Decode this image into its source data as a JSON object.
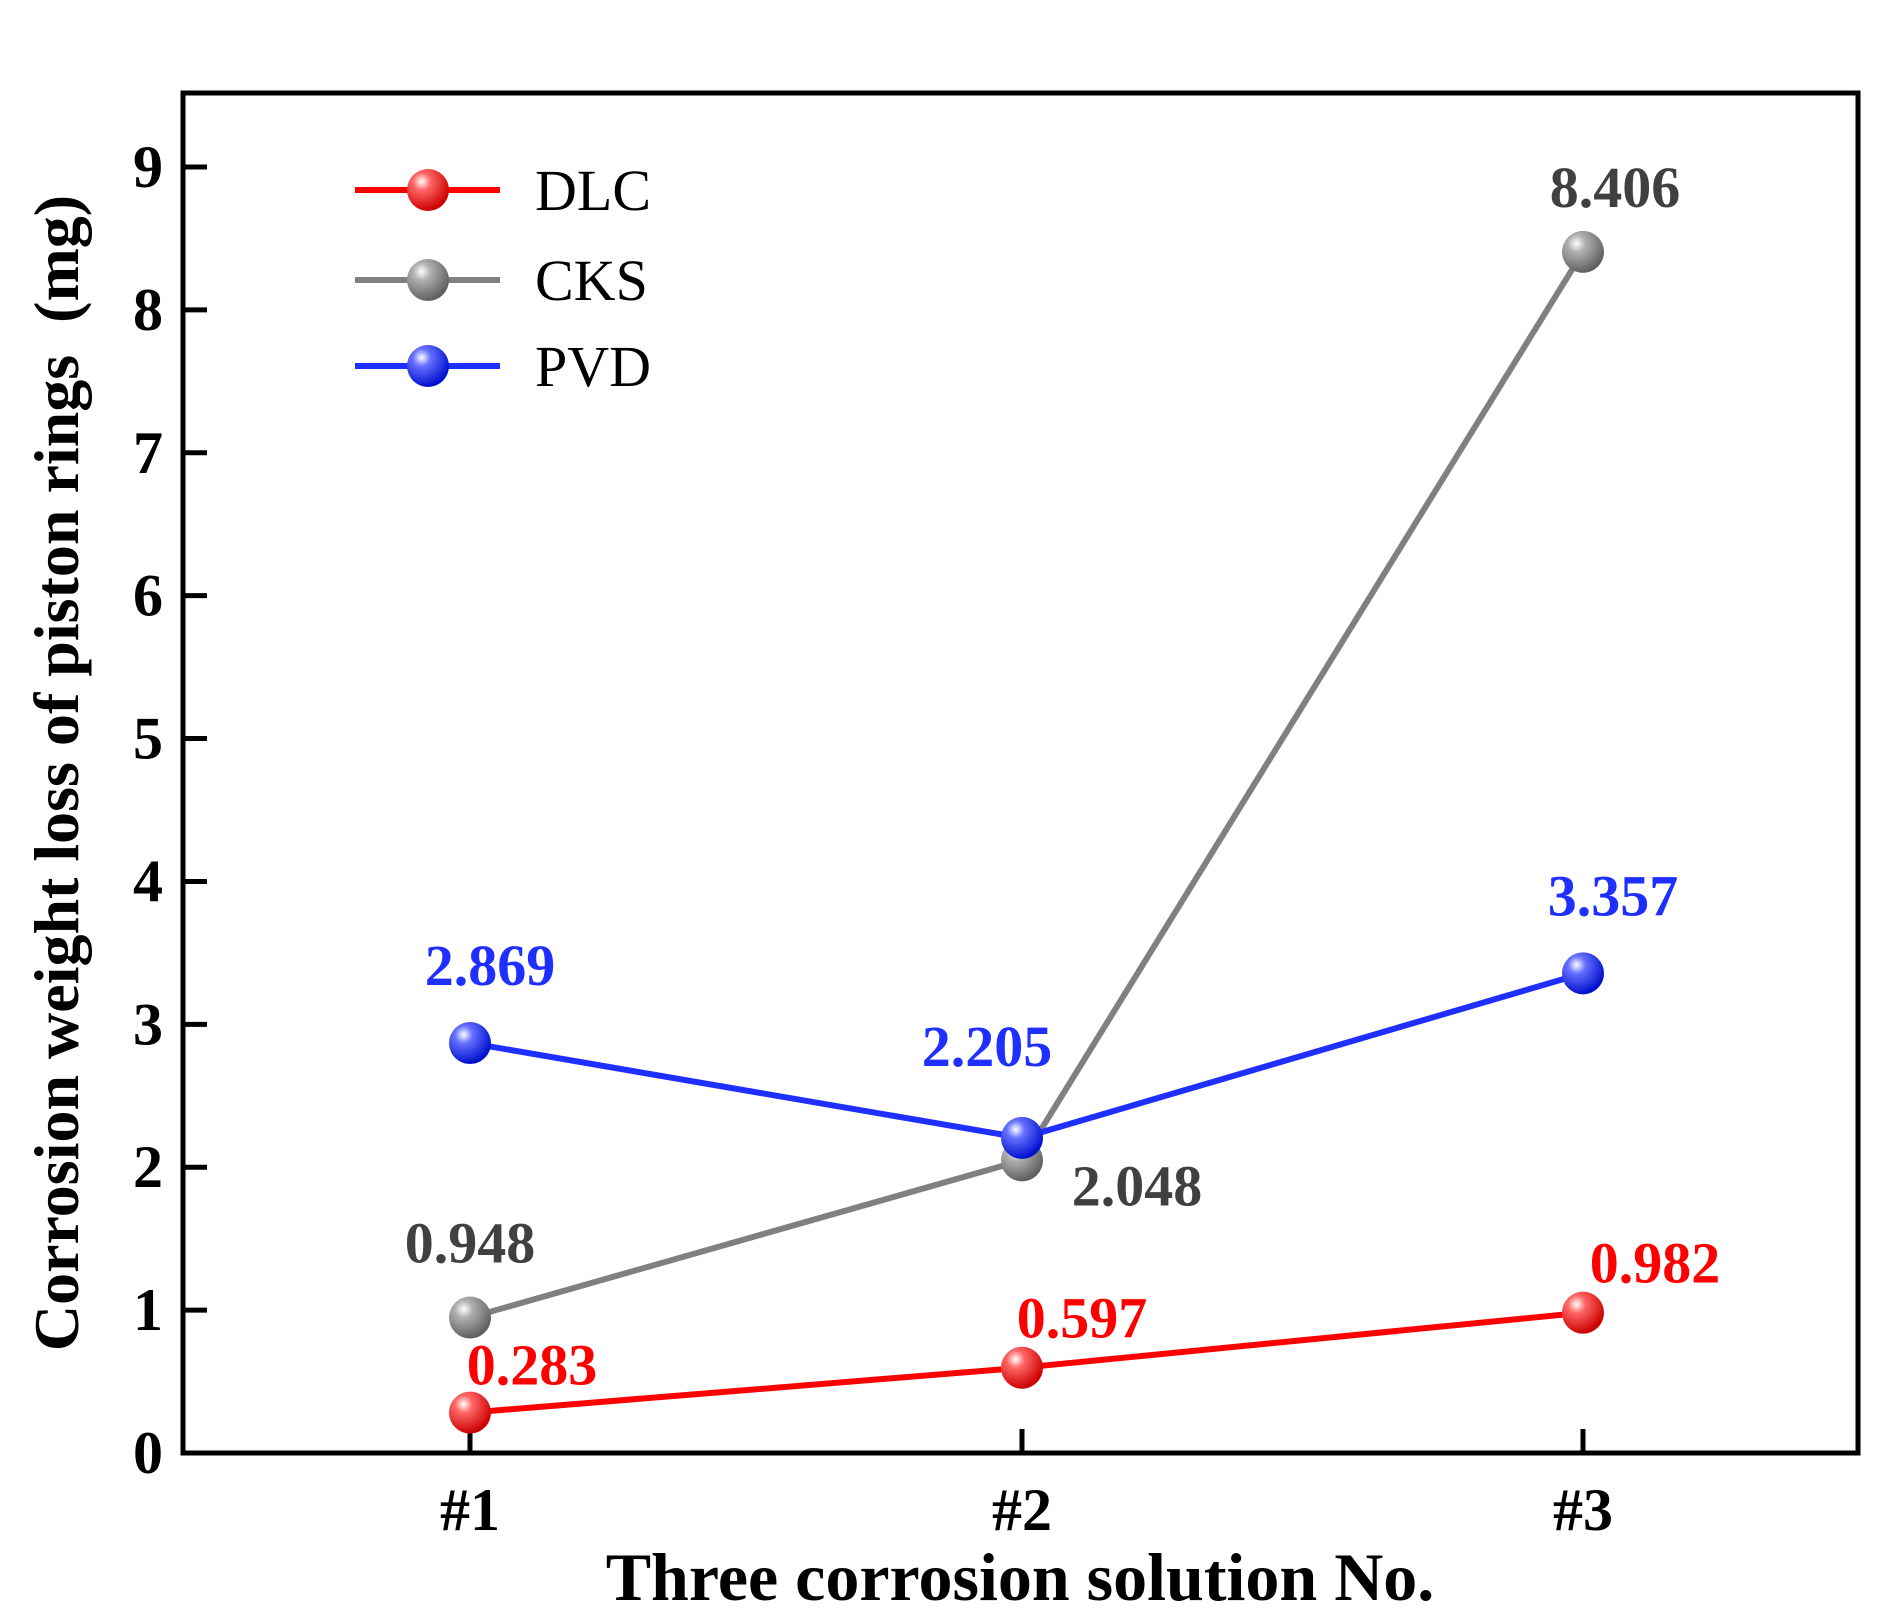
{
  "chart_data": {
    "type": "line",
    "title": "",
    "xlabel": "Three corrosion solution No.",
    "ylabel": "Corrosion weight loss of piston rings  (mg)",
    "categories": [
      "#1",
      "#2",
      "#3"
    ],
    "ylim": [
      0,
      9.5
    ],
    "yticks": [
      "0",
      "1",
      "2",
      "3",
      "4",
      "5",
      "6",
      "7",
      "8",
      "9"
    ],
    "grid": false,
    "legend_position": "top-left",
    "series": [
      {
        "name": "DLC",
        "color": "#ff0000",
        "values": [
          0.283,
          0.597,
          0.982
        ],
        "labels": [
          "0.283",
          "0.597",
          "0.982"
        ]
      },
      {
        "name": "CKS",
        "color": "#808080",
        "label_color": "#404040",
        "values": [
          0.948,
          2.048,
          8.406
        ],
        "labels": [
          "0.948",
          "2.048",
          "8.406"
        ]
      },
      {
        "name": "PVD",
        "color": "#1f2fff",
        "values": [
          2.869,
          2.205,
          3.357
        ],
        "labels": [
          "2.869",
          "2.205",
          "3.357"
        ]
      }
    ]
  }
}
